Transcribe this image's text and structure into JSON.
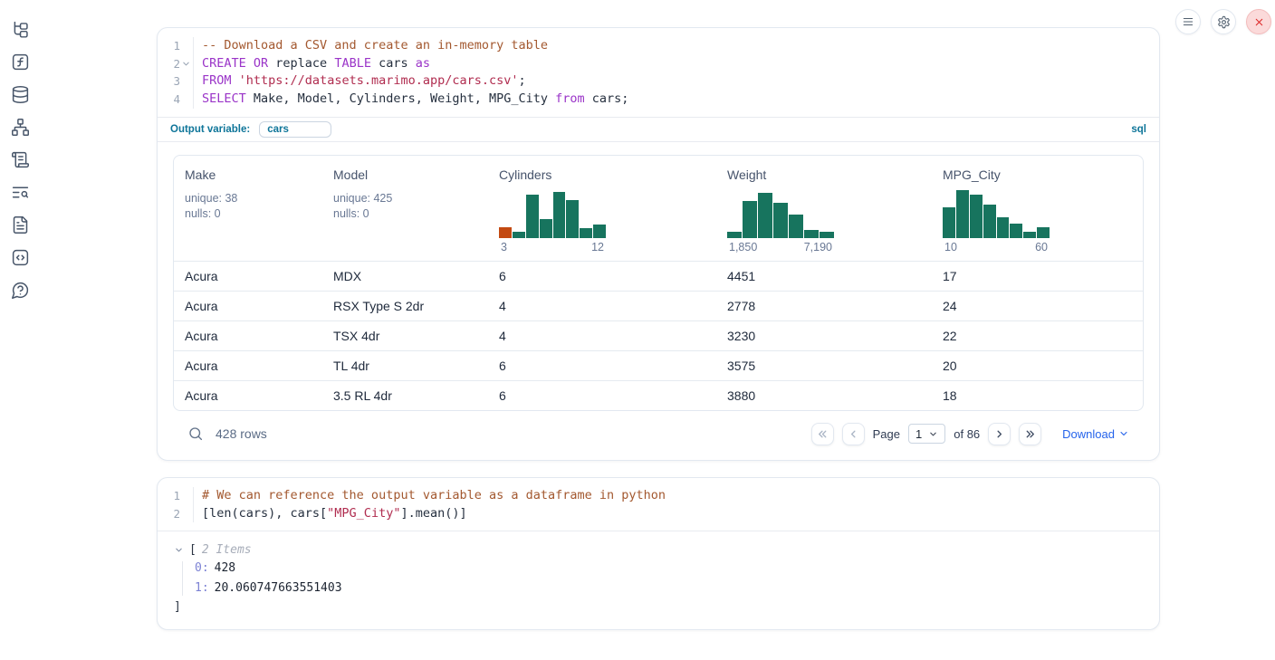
{
  "sidebar": {
    "icons": [
      "file-explorer",
      "variables",
      "data-sources",
      "dependency-graph",
      "logs",
      "table-of-contents",
      "documentation",
      "snippets",
      "help"
    ]
  },
  "topbar": {
    "icons": [
      "menu",
      "settings",
      "close"
    ]
  },
  "cells": {
    "sql": {
      "line_numbers": [
        "1",
        "2",
        "3",
        "4"
      ],
      "lines": [
        [
          {
            "c": "com",
            "t": "-- Download a CSV and create an in-memory table"
          }
        ],
        [
          {
            "c": "kw",
            "t": "CREATE OR"
          },
          {
            "c": "pl",
            "t": " replace "
          },
          {
            "c": "kw",
            "t": "TABLE"
          },
          {
            "c": "pl",
            "t": " cars "
          },
          {
            "c": "kw",
            "t": "as"
          }
        ],
        [
          {
            "c": "kw",
            "t": "FROM"
          },
          {
            "c": "pl",
            "t": " "
          },
          {
            "c": "str",
            "t": "'https://datasets.marimo.app/cars.csv'"
          },
          {
            "c": "pl",
            "t": ";"
          }
        ],
        [
          {
            "c": "kw",
            "t": "SELECT"
          },
          {
            "c": "pl",
            "t": " Make, Model, Cylinders, Weight, MPG_City "
          },
          {
            "c": "kw",
            "t": "from"
          },
          {
            "c": "pl",
            "t": " cars;"
          }
        ]
      ],
      "output_variable": {
        "label": "Output variable:",
        "value": "cars",
        "language": "sql"
      }
    },
    "python": {
      "line_numbers": [
        "1",
        "2"
      ],
      "lines": [
        [
          {
            "c": "com",
            "t": "# We can reference the output variable as a dataframe in python"
          }
        ],
        [
          {
            "c": "pl",
            "t": "[len(cars), cars["
          },
          {
            "c": "str",
            "t": "\"MPG_City\""
          },
          {
            "c": "pl",
            "t": "].mean()]"
          }
        ]
      ],
      "output_tree": {
        "bracket_open": "[",
        "items_label": "2 Items",
        "entries": [
          {
            "key": "0:",
            "value": "428"
          },
          {
            "key": "1:",
            "value": "20.060747663551403"
          }
        ],
        "bracket_close": "]"
      }
    }
  },
  "table": {
    "columns": [
      {
        "name": "Make",
        "stats": [
          "unique: 38",
          "nulls: 0"
        ]
      },
      {
        "name": "Model",
        "stats": [
          "unique: 425",
          "nulls: 0"
        ]
      },
      {
        "name": "Cylinders",
        "histogram": {
          "values": [
            0.22,
            0.13,
            0.88,
            0.38,
            0.95,
            0.78,
            0.2,
            0.28
          ],
          "highlight_first": true,
          "labels": [
            "3",
            "12"
          ]
        }
      },
      {
        "name": "Weight",
        "histogram": {
          "values": [
            0.12,
            0.75,
            0.93,
            0.72,
            0.48,
            0.17,
            0.12
          ],
          "highlight_first": false,
          "labels": [
            "1,850",
            "7,190"
          ]
        }
      },
      {
        "name": "MPG_City",
        "histogram": {
          "values": [
            0.62,
            0.97,
            0.88,
            0.68,
            0.42,
            0.3,
            0.13,
            0.22
          ],
          "highlight_first": false,
          "labels": [
            "10",
            "60"
          ]
        }
      }
    ],
    "rows": [
      [
        "Acura",
        "MDX",
        "6",
        "4451",
        "17"
      ],
      [
        "Acura",
        "RSX Type S 2dr",
        "4",
        "2778",
        "24"
      ],
      [
        "Acura",
        "TSX 4dr",
        "4",
        "3230",
        "22"
      ],
      [
        "Acura",
        "TL 4dr",
        "6",
        "3575",
        "20"
      ],
      [
        "Acura",
        "3.5 RL 4dr",
        "6",
        "3880",
        "18"
      ]
    ],
    "footer": {
      "rows_label": "428 rows",
      "page_label": "Page",
      "current_page": "1",
      "of_label": "of 86",
      "download_label": "Download"
    }
  },
  "colors": {
    "histogram_teal": "#17745e",
    "histogram_orange": "#c34a12",
    "accent_teal_blue": "#0e7599",
    "link_blue": "#2563eb",
    "keyword_purple": "#9a34c8",
    "string_red": "#b02c4f",
    "comment_brown": "#a3582f",
    "close_button_red": "#dc2626"
  }
}
